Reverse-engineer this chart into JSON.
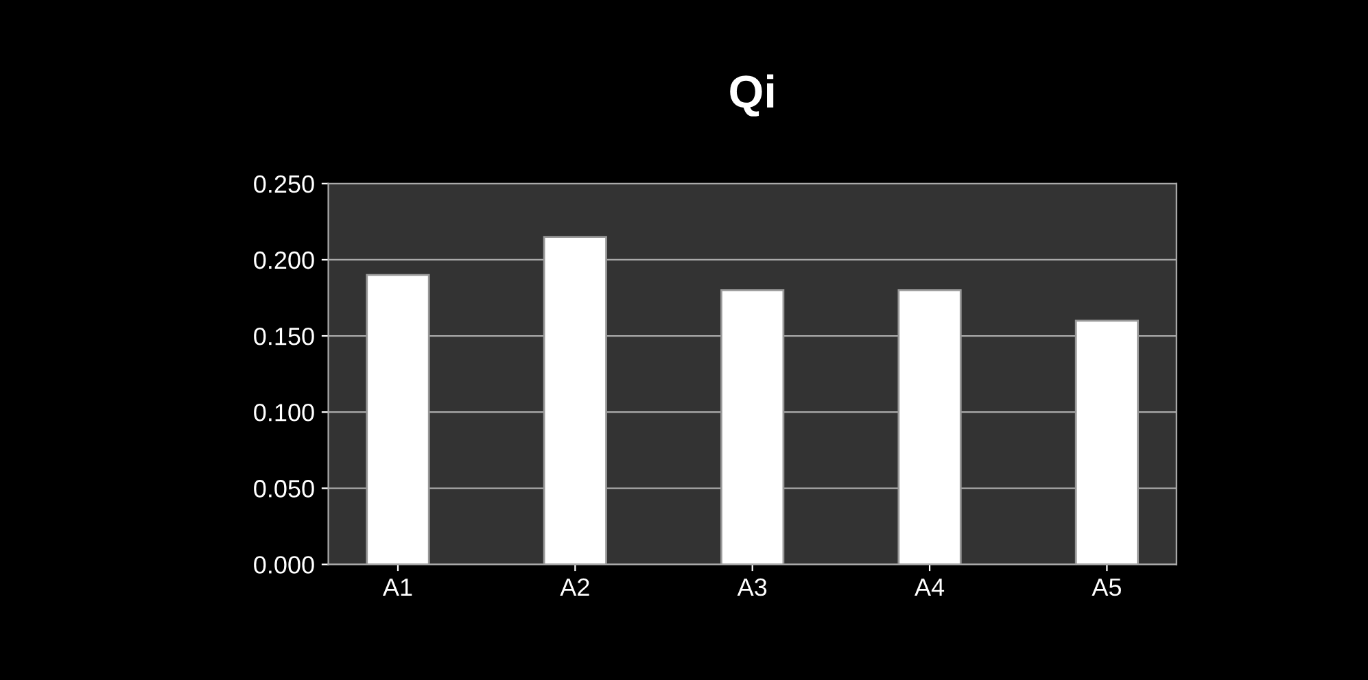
{
  "chart_data": {
    "type": "bar",
    "title": "Qi",
    "categories": [
      "A1",
      "A2",
      "A3",
      "A4",
      "A5"
    ],
    "values": [
      0.19,
      0.215,
      0.18,
      0.18,
      0.16
    ],
    "color": "#ffffff",
    "ylim": [
      0,
      0.25
    ],
    "yticks": [
      {
        "value": 0,
        "label": "0.000"
      },
      {
        "value": 0.05,
        "label": "0.050"
      },
      {
        "value": 0.1,
        "label": "0.100"
      },
      {
        "value": 0.15,
        "label": "0.150"
      },
      {
        "value": 0.2,
        "label": "0.200"
      },
      {
        "value": 0.25,
        "label": "0.250"
      }
    ],
    "grid": "y"
  }
}
